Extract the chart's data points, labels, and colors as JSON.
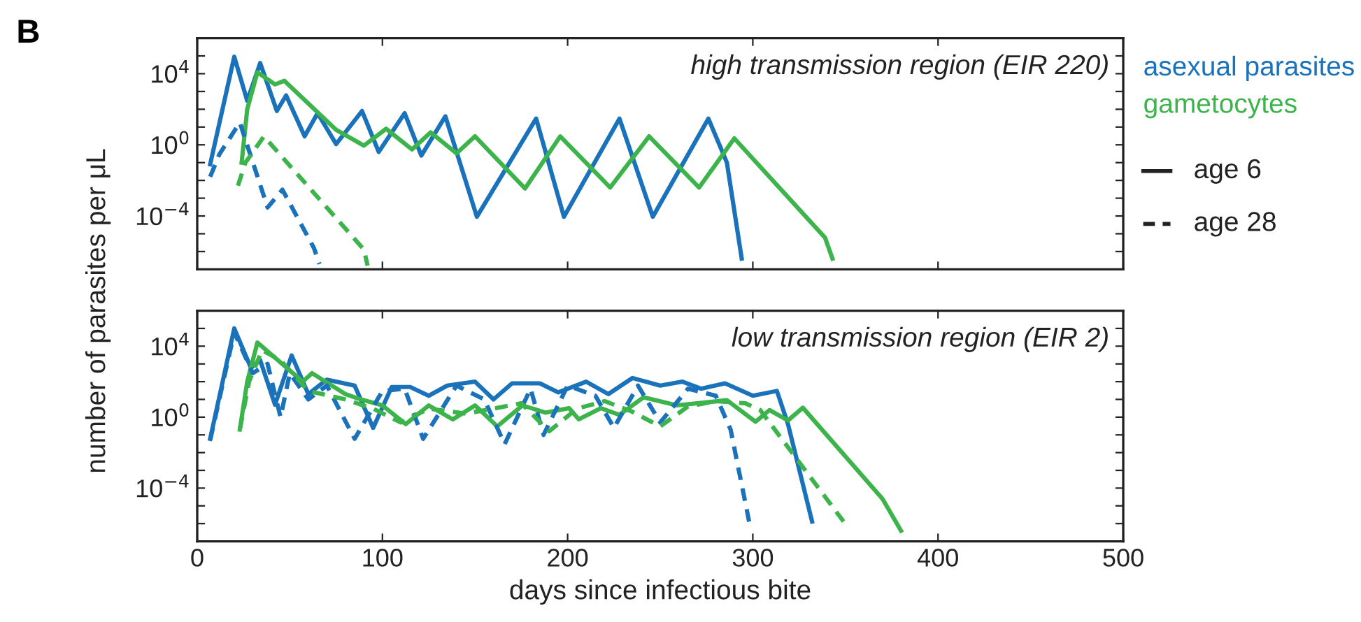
{
  "chart_data": [
    {
      "type": "line",
      "title": null,
      "ylabel": "number of parasites per μL",
      "log": "y",
      "tick_labels": "y",
      "grid": false,
      "annotations": [
        "B",
        "high transmission region (EIR 220)",
        "asexual parasites",
        "gametocytes",
        "age 6",
        "age 28"
      ],
      "xlim": [
        0,
        500
      ],
      "xticks": [
        0,
        100,
        200,
        300,
        400,
        500
      ],
      "ylim": [
        1e-07,
        1000000.0
      ],
      "yticks": [
        {
          "value": 1e-07,
          "label": null
        },
        {
          "value": 1e-06,
          "label": null
        },
        {
          "value": 1e-05,
          "label": null
        },
        {
          "value": 0.0001,
          "label": "10$^{−4}$"
        },
        {
          "value": 0.001,
          "label": null
        },
        {
          "value": 0.01,
          "label": null
        },
        {
          "value": 0.1,
          "label": null
        },
        {
          "value": 1,
          "label": "10$^{0}$"
        },
        {
          "value": 10,
          "label": null
        },
        {
          "value": 100,
          "label": null
        },
        {
          "value": 1000,
          "label": null
        },
        {
          "value": 10000.0,
          "label": "10$^{4}$"
        },
        {
          "value": 100000.0,
          "label": null
        },
        {
          "value": 1000000.0,
          "label": null
        }
      ],
      "series": [
        {
          "color": "#1a72bb",
          "line_style": "solid",
          "x": [
            7,
            20,
            27,
            34,
            43,
            48,
            58,
            65,
            75,
            89,
            98,
            112,
            121,
            134,
            151,
            183,
            198,
            228,
            246,
            276,
            286,
            294
          ],
          "values": [
            0.08,
            90000,
            300,
            40000,
            80,
            600,
            3,
            60,
            1.1,
            80,
            0.4,
            60,
            0.25,
            40,
            9e-05,
            30,
            9e-05,
            30,
            9e-05,
            30,
            0.1,
            4e-07
          ]
        },
        {
          "color": "#3cb44b",
          "line_style": "solid",
          "x": [
            24,
            27,
            32.5,
            42,
            47,
            75,
            90,
            102,
            116,
            126,
            140,
            150,
            177,
            196,
            223,
            244,
            271,
            290,
            339,
            343
          ],
          "values": [
            0.1,
            100,
            12000,
            2500,
            4000,
            7,
            0.9,
            8,
            0.55,
            5,
            0.33,
            3,
            0.0035,
            3,
            0.004,
            3,
            0.004,
            2.3,
            6e-06,
            4e-07
          ]
        },
        {
          "color": "#1a72bb",
          "line_style": "dashed",
          "x": [
            7,
            12,
            23,
            38,
            46,
            63,
            66
          ],
          "values": [
            0.016,
            0.3,
            18,
            0.0003,
            0.003,
            1.6e-06,
            2e-07
          ]
        },
        {
          "color": "#3cb44b",
          "line_style": "dashed",
          "x": [
            22,
            26,
            36,
            90,
            92
          ],
          "values": [
            0.005,
            0.1,
            3,
            1.3e-06,
            1.6e-07
          ]
        }
      ]
    },
    {
      "type": "line",
      "xlabel": "days since infectious bite",
      "log": "y",
      "grid": false,
      "annotations": [
        "low transmission region (EIR 2)"
      ],
      "xlim": [
        0,
        500
      ],
      "xticks": [
        0,
        100,
        200,
        300,
        400,
        500
      ],
      "ylim": [
        1e-07,
        1000000.0
      ],
      "yticks": [
        {
          "value": 1e-07,
          "label": null
        },
        {
          "value": 1e-06,
          "label": null
        },
        {
          "value": 1e-05,
          "label": null
        },
        {
          "value": 0.0001,
          "label": "10$^{−4}$"
        },
        {
          "value": 0.001,
          "label": null
        },
        {
          "value": 0.01,
          "label": null
        },
        {
          "value": 0.1,
          "label": null
        },
        {
          "value": 1,
          "label": "10$^{0}$"
        },
        {
          "value": 10,
          "label": null
        },
        {
          "value": 100,
          "label": null
        },
        {
          "value": 1000,
          "label": null
        },
        {
          "value": 10000.0,
          "label": "10$^{4}$"
        },
        {
          "value": 100000.0,
          "label": null
        },
        {
          "value": 1000000.0,
          "label": null
        }
      ],
      "series": [
        {
          "color": "#1a72bb",
          "line_style": "solid",
          "x": [
            7,
            20,
            29,
            34,
            42,
            51,
            60,
            70,
            85,
            95,
            105,
            115,
            125,
            135,
            150,
            160,
            170,
            185,
            195,
            210,
            222,
            235,
            250,
            262,
            272,
            285,
            300,
            313,
            319,
            332
          ],
          "values": [
            0.06,
            100000,
            600,
            1600,
            5,
            3000,
            20,
            130,
            60,
            0.25,
            50,
            50,
            16,
            60,
            100,
            10,
            80,
            80,
            25,
            100,
            20,
            160,
            60,
            100,
            40,
            80,
            16,
            30,
            0.4,
            1.3e-06
          ]
        },
        {
          "color": "#3cb44b",
          "line_style": "solid",
          "x": [
            23,
            27,
            32.5,
            57,
            62,
            80,
            87,
            100,
            112.6,
            125,
            138,
            150,
            162,
            175.6,
            188,
            200.8,
            206,
            218,
            228,
            241,
            259,
            286,
            301.5,
            309,
            319,
            327,
            370,
            380
          ],
          "values": [
            0.2,
            100,
            16000,
            100,
            300,
            20,
            11,
            4.6,
            0.4,
            4.6,
            0.75,
            4.6,
            0.3,
            4.6,
            1.8,
            3.2,
            0.75,
            3.2,
            1.35,
            13,
            4.6,
            9,
            0.55,
            2.5,
            0.65,
            3.4,
            2.5e-05,
            4e-07
          ]
        },
        {
          "color": "#1a72bb",
          "line_style": "dashed",
          "x": [
            7,
            20,
            30,
            38,
            45,
            50,
            60,
            70,
            85,
            100,
            112,
            122,
            140,
            155,
            166,
            180,
            187,
            200,
            215,
            225,
            238,
            250,
            265,
            280,
            288,
            298
          ],
          "values": [
            0.05,
            60000,
            300,
            1000,
            1,
            300,
            10,
            60,
            0.06,
            30,
            40,
            0.06,
            60,
            10,
            0.03,
            40,
            0.1,
            60,
            16,
            0.25,
            60,
            0.5,
            40,
            16,
            0.2,
            1.3e-06
          ]
        },
        {
          "color": "#3cb44b",
          "line_style": "dashed",
          "x": [
            23,
            28,
            35,
            45,
            60,
            80,
            95,
            110,
            125,
            145,
            160,
            175,
            190,
            205,
            220,
            235,
            250,
            265,
            280,
            296,
            304,
            349
          ],
          "values": [
            0.2,
            100,
            6000,
            1600,
            30,
            10,
            3,
            0.5,
            3,
            1.6,
            3,
            6,
            0.16,
            3,
            8,
            2,
            0.3,
            4,
            8,
            6,
            2.5,
            1.3e-06
          ]
        }
      ]
    }
  ]
}
